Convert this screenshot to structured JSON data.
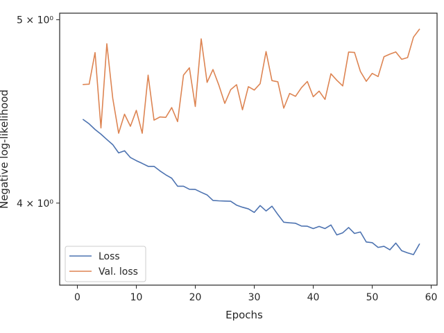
{
  "chart_data": {
    "type": "line",
    "xlabel": "Epochs",
    "ylabel": "Negative log-likelihood",
    "xlim": [
      -3,
      61
    ],
    "ylim": [
      3.62,
      5.04
    ],
    "yscale": "log",
    "grid": false,
    "legend_position": "lower-left",
    "x_ticks": [
      {
        "value": 0,
        "label": "0"
      },
      {
        "value": 10,
        "label": "10"
      },
      {
        "value": 20,
        "label": "20"
      },
      {
        "value": 30,
        "label": "30"
      },
      {
        "value": 40,
        "label": "40"
      },
      {
        "value": 50,
        "label": "50"
      },
      {
        "value": 60,
        "label": "60"
      }
    ],
    "y_ticks": [
      {
        "value": 4.0,
        "label": "4 × 10⁰"
      },
      {
        "value": 5.0,
        "label": "5 × 10⁰"
      }
    ],
    "x": [
      1,
      2,
      3,
      4,
      5,
      6,
      7,
      8,
      9,
      10,
      11,
      12,
      13,
      14,
      15,
      16,
      17,
      18,
      19,
      20,
      21,
      22,
      23,
      24,
      25,
      26,
      27,
      28,
      29,
      30,
      31,
      32,
      33,
      34,
      35,
      36,
      37,
      38,
      39,
      40,
      41,
      42,
      43,
      44,
      45,
      46,
      47,
      48,
      49,
      50,
      51,
      52,
      53,
      54,
      55,
      56,
      57,
      58
    ],
    "series": [
      {
        "name": "Loss",
        "color": "#4c72b0",
        "values": [
          4.428,
          4.405,
          4.375,
          4.35,
          4.322,
          4.295,
          4.252,
          4.263,
          4.228,
          4.212,
          4.198,
          4.183,
          4.183,
          4.16,
          4.14,
          4.123,
          4.083,
          4.083,
          4.068,
          4.067,
          4.053,
          4.04,
          4.013,
          4.011,
          4.01,
          4.009,
          3.99,
          3.98,
          3.972,
          3.955,
          3.988,
          3.962,
          3.985,
          3.945,
          3.908,
          3.905,
          3.903,
          3.89,
          3.889,
          3.878,
          3.888,
          3.878,
          3.895,
          3.848,
          3.858,
          3.883,
          3.855,
          3.862,
          3.815,
          3.812,
          3.79,
          3.795,
          3.779,
          3.81,
          3.775,
          3.765,
          3.757,
          3.805
        ]
      },
      {
        "name": "Val. loss",
        "color": "#dd8452",
        "values": [
          4.621,
          4.623,
          4.804,
          4.383,
          4.856,
          4.545,
          4.355,
          4.457,
          4.392,
          4.478,
          4.355,
          4.674,
          4.425,
          4.442,
          4.44,
          4.493,
          4.417,
          4.674,
          4.716,
          4.499,
          4.885,
          4.633,
          4.706,
          4.617,
          4.516,
          4.592,
          4.62,
          4.481,
          4.609,
          4.59,
          4.626,
          4.81,
          4.643,
          4.636,
          4.49,
          4.571,
          4.555,
          4.603,
          4.638,
          4.553,
          4.584,
          4.538,
          4.682,
          4.645,
          4.613,
          4.807,
          4.805,
          4.695,
          4.639,
          4.684,
          4.666,
          4.78,
          4.795,
          4.808,
          4.765,
          4.775,
          4.895,
          4.942
        ]
      }
    ]
  }
}
